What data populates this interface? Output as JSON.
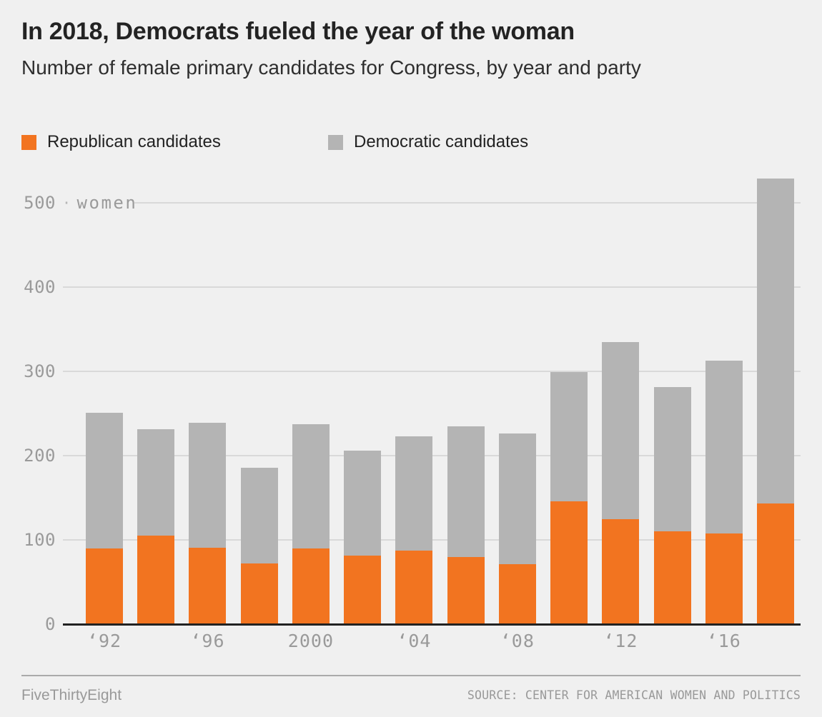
{
  "title": "In 2018, Democrats fueled the year of the woman",
  "subtitle": "Number of female primary candidates for Congress, by year and party",
  "legend": [
    {
      "label": "Republican candidates",
      "color": "#f27420"
    },
    {
      "label": "Democratic candidates",
      "color": "#b4b4b4"
    }
  ],
  "footer": {
    "brand": "FiveThirtyEight",
    "source": "SOURCE: CENTER FOR AMERICAN WOMEN AND POLITICS"
  },
  "chart_data": {
    "type": "bar",
    "stacked": true,
    "title": "In 2018, Democrats fueled the year of the woman",
    "subtitle": "Number of female primary candidates for Congress, by year and party",
    "categories": [
      1992,
      1994,
      1996,
      1998,
      2000,
      2002,
      2004,
      2006,
      2008,
      2010,
      2012,
      2014,
      2016,
      2018
    ],
    "x_tick_labels": [
      "‘92",
      "",
      "‘96",
      "",
      "2000",
      "",
      "‘04",
      "",
      "‘08",
      "",
      "‘12",
      "",
      "‘16",
      ""
    ],
    "series": [
      {
        "name": "Republican candidates",
        "color": "#f27420",
        "values": [
          90,
          105,
          91,
          72,
          90,
          81,
          87,
          80,
          71,
          146,
          125,
          110,
          108,
          143
        ]
      },
      {
        "name": "Democratic candidates",
        "color": "#b4b4b4",
        "values": [
          161,
          126,
          148,
          114,
          147,
          125,
          136,
          155,
          155,
          153,
          210,
          171,
          205,
          386
        ]
      }
    ],
    "totals": [
      251,
      231,
      239,
      186,
      237,
      206,
      223,
      235,
      226,
      299,
      335,
      281,
      313,
      529
    ],
    "ylim": [
      0,
      540
    ],
    "y_ticks": [
      0,
      100,
      200,
      300,
      400,
      500
    ],
    "unit_label": "women",
    "unit_separator": "·",
    "grid": true,
    "legend_position": "top-left"
  }
}
